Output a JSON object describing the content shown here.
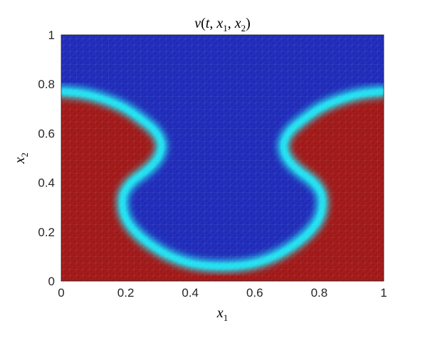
{
  "chart_data": {
    "type": "heatmap",
    "title": "v(t, x1, x2)",
    "xlabel": "x1",
    "ylabel": "x2",
    "xlim": [
      0,
      1
    ],
    "ylim": [
      0,
      1
    ],
    "x_ticks": [
      "0",
      "0.2",
      "0.4",
      "0.6",
      "0.8",
      "1"
    ],
    "y_ticks": [
      "0",
      "0.2",
      "0.4",
      "0.6",
      "0.8",
      "1"
    ],
    "grid": false,
    "colormap": "jet",
    "colors": {
      "low": "#1f2bb8",
      "high": "#a01818",
      "interface": "#24e0f0"
    },
    "interface_curve": [
      [
        0.0,
        0.77
      ],
      [
        0.07,
        0.76
      ],
      [
        0.14,
        0.735
      ],
      [
        0.2,
        0.7
      ],
      [
        0.25,
        0.655
      ],
      [
        0.29,
        0.61
      ],
      [
        0.31,
        0.56
      ],
      [
        0.305,
        0.515
      ],
      [
        0.285,
        0.475
      ],
      [
        0.255,
        0.44
      ],
      [
        0.22,
        0.405
      ],
      [
        0.195,
        0.36
      ],
      [
        0.19,
        0.31
      ],
      [
        0.2,
        0.255
      ],
      [
        0.23,
        0.2
      ],
      [
        0.28,
        0.145
      ],
      [
        0.34,
        0.1
      ],
      [
        0.41,
        0.07
      ],
      [
        0.5,
        0.06
      ],
      [
        0.59,
        0.07
      ],
      [
        0.66,
        0.1
      ],
      [
        0.72,
        0.145
      ],
      [
        0.77,
        0.2
      ],
      [
        0.8,
        0.255
      ],
      [
        0.81,
        0.31
      ],
      [
        0.805,
        0.36
      ],
      [
        0.78,
        0.405
      ],
      [
        0.745,
        0.44
      ],
      [
        0.715,
        0.475
      ],
      [
        0.695,
        0.515
      ],
      [
        0.69,
        0.56
      ],
      [
        0.71,
        0.61
      ],
      [
        0.75,
        0.655
      ],
      [
        0.8,
        0.7
      ],
      [
        0.86,
        0.735
      ],
      [
        0.93,
        0.76
      ],
      [
        1.0,
        0.77
      ]
    ]
  }
}
